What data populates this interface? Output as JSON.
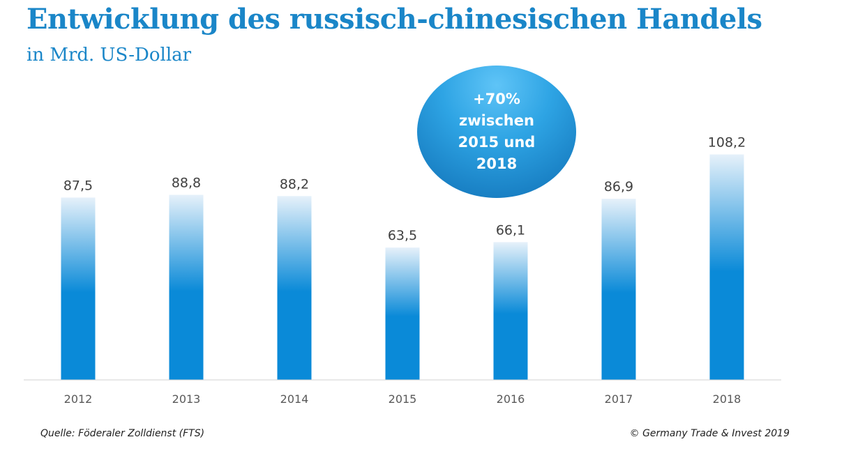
{
  "title": "Entwicklung des russisch-chinesischen Handels",
  "subtitle": "in Mrd. US-Dollar",
  "callout": {
    "lines": [
      "+70%",
      "zwischen",
      "2015 und",
      "2018"
    ]
  },
  "footer": {
    "source": "Quelle: Föderaler Zolldienst (FTS)",
    "copyright": "© Germany Trade & Invest 2019"
  },
  "colors": {
    "bar": "#0a8ad8",
    "bar_top": "#e6f1fa",
    "title": "#1a86c8"
  },
  "chart_data": {
    "type": "bar",
    "categories": [
      "2012",
      "2013",
      "2014",
      "2015",
      "2016",
      "2017",
      "2018"
    ],
    "values": [
      87.5,
      88.8,
      88.2,
      63.5,
      66.1,
      86.9,
      108.2
    ],
    "data_labels": [
      "87,5",
      "88,8",
      "88,2",
      "63,5",
      "66,1",
      "86,9",
      "108,2"
    ],
    "title": "Entwicklung des russisch-chinesischen Handels",
    "ylabel": "in Mrd. US-Dollar",
    "ylim": [
      0,
      110
    ],
    "grid": false,
    "legend": "none"
  }
}
